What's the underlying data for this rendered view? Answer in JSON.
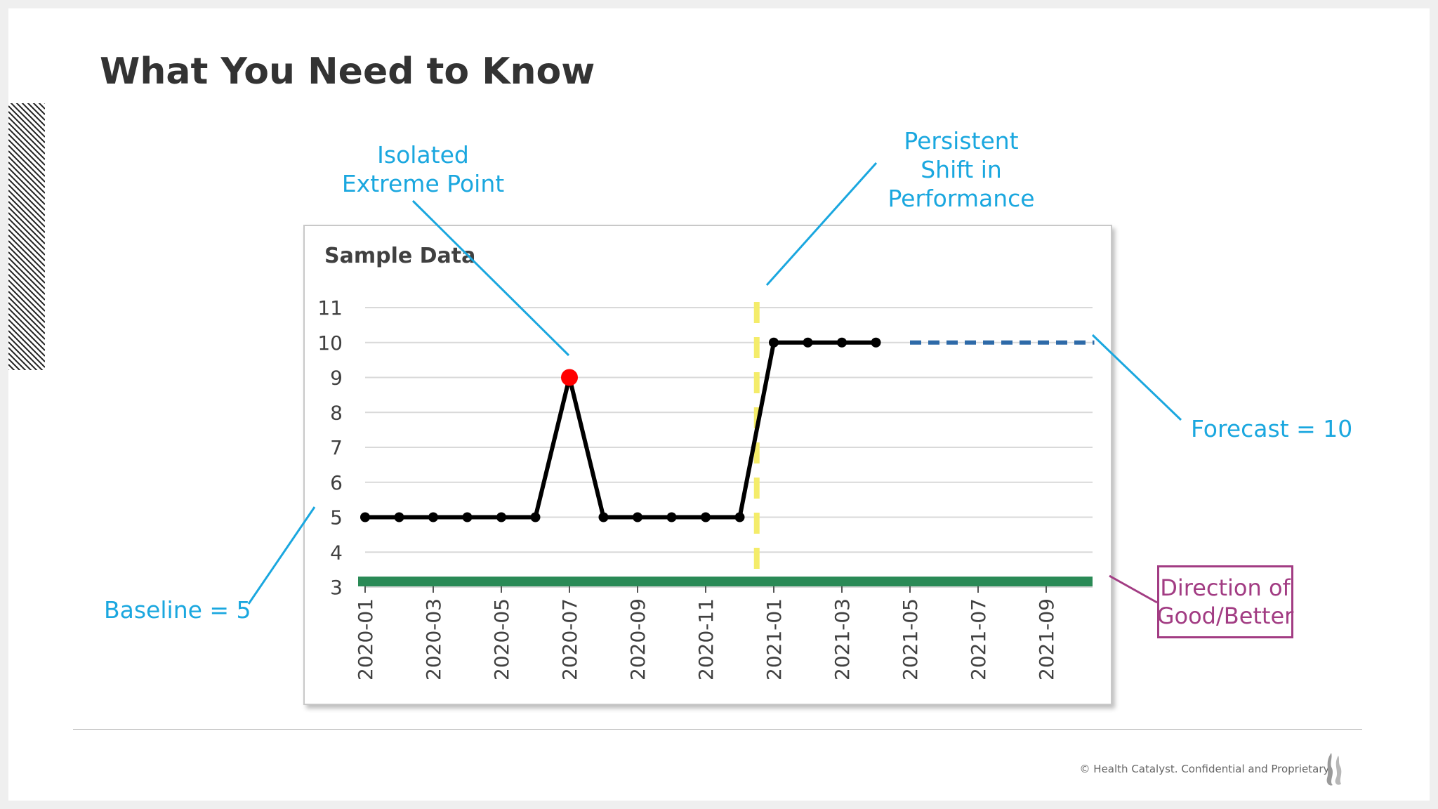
{
  "slide": {
    "title": "What You Need to Know",
    "footer": "© Health Catalyst. Confidential and Proprietary."
  },
  "callouts": {
    "isolated": "Isolated\nExtreme Point",
    "shift": "Persistent\nShift in\nPerformance",
    "forecast": "Forecast = 10",
    "baseline": "Baseline = 5",
    "direction": "Direction of\nGood/Better"
  },
  "colors": {
    "callout": "#1aa7df",
    "direction": "#a23c83",
    "line": "#000000",
    "outlier": "#ff0000",
    "forecast": "#2e6aa8",
    "shift_marker": "#f4ec6a",
    "good_bar": "#2a8a56",
    "grid": "#d9d9d9"
  },
  "chart_data": {
    "type": "line",
    "title": "Sample Data",
    "ylim": [
      3,
      11
    ],
    "yticks": [
      "3",
      "4",
      "5",
      "6",
      "7",
      "8",
      "9",
      "10",
      "11"
    ],
    "xticks": [
      "2020-01",
      "2020-03",
      "2020-05",
      "2020-07",
      "2020-09",
      "2020-11",
      "2021-01",
      "2021-03",
      "2021-05",
      "2021-07",
      "2021-09"
    ],
    "grid": true,
    "series": [
      {
        "x": [
          "2020-01",
          "2020-02",
          "2020-03",
          "2020-04",
          "2020-05",
          "2020-06",
          "2020-07",
          "2020-08",
          "2020-09",
          "2020-10",
          "2020-11",
          "2020-12",
          "2021-01",
          "2021-02",
          "2021-03",
          "2021-04"
        ],
        "values": [
          5,
          5,
          5,
          5,
          5,
          5,
          9,
          5,
          5,
          5,
          5,
          5,
          10,
          10,
          10,
          10
        ],
        "highlight": {
          "x": "2020-07",
          "value": 9
        }
      },
      {
        "style": "dashed",
        "x": [
          "2021-05",
          "2021-10"
        ],
        "values": [
          10,
          10
        ]
      }
    ],
    "shift_marker_x": "2020-12.5",
    "good_direction_bar_y": 3
  }
}
